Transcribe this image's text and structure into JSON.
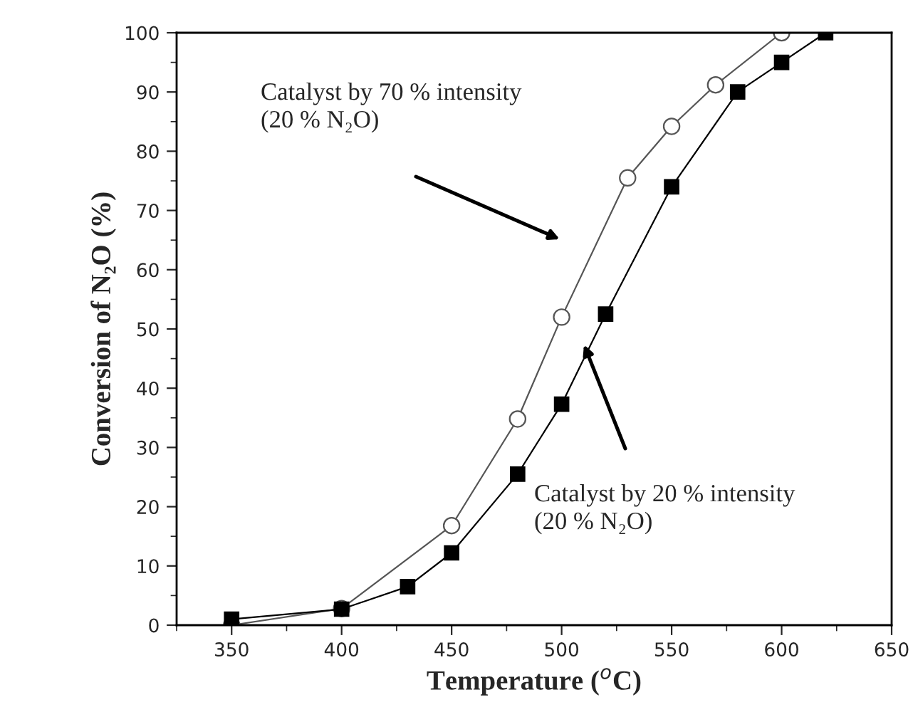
{
  "chart_data": {
    "type": "line",
    "xlabel": "Temperature ($^{o}$C)",
    "ylabel": "Conversion of N₂O (%)",
    "series": [
      {
        "color": "#555555",
        "marker": "circle",
        "x": [
          350,
          400,
          450,
          480,
          500,
          530,
          550,
          570,
          600
        ],
        "values": [
          0,
          2.8,
          16.8,
          34.8,
          52,
          75.5,
          84.2,
          91.2,
          100
        ]
      },
      {
        "color": "#000000",
        "marker": "square",
        "x": [
          350,
          400,
          430,
          450,
          480,
          500,
          520,
          550,
          580,
          600,
          620
        ],
        "values": [
          1,
          2.7,
          6.5,
          12.2,
          25.5,
          37.3,
          52.5,
          74,
          90,
          95,
          100
        ]
      }
    ],
    "annotations": [
      "Catalyst by 70 % intensity\n(20 % N₂O)",
      "Catalyst by 20 % intensity\n(20 % N₂O)"
    ],
    "xlim": [
      325,
      650
    ],
    "xticks": [
      350,
      400,
      450,
      500,
      550,
      600,
      650
    ],
    "ylim": [
      0,
      100
    ],
    "yticks": [
      0,
      10,
      20,
      30,
      40,
      50,
      60,
      70,
      80,
      90,
      100
    ],
    "grid": false,
    "legend": false
  }
}
